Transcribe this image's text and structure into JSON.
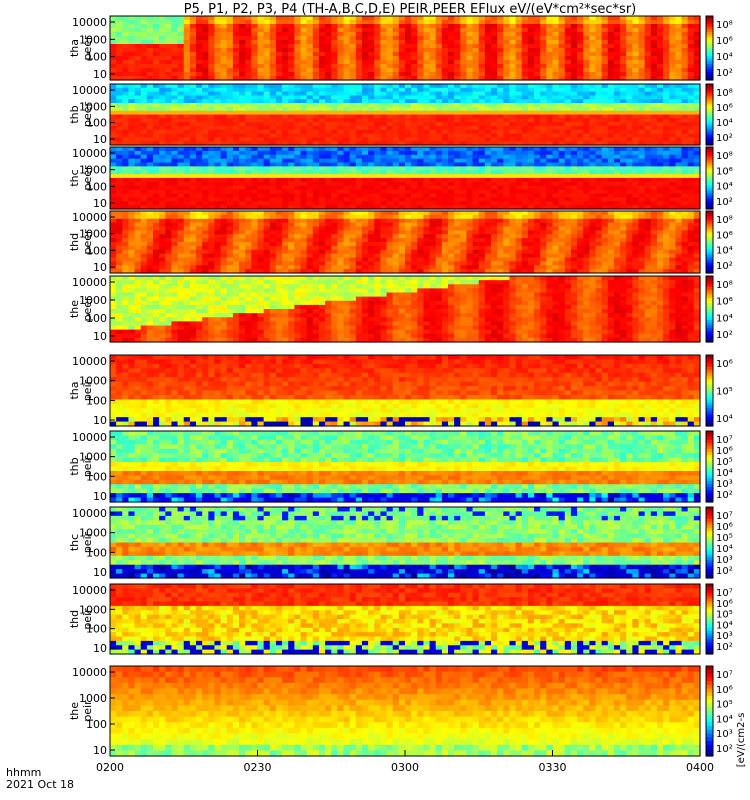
{
  "chart_data": {
    "type": "heatmap",
    "title": "P5, P1, P2, P3, P4 (TH-A,B,C,D,E) PEIR,PEER EFlux eV/(eV*cm²*sec*sr)",
    "x_axis": {
      "ticks": [
        "0200",
        "0230",
        "0300",
        "0330",
        "0400"
      ],
      "title_line1": "hhmm",
      "title_line2": "2021 Oct 18"
    },
    "colorbar_unit_label": "[eV/(cm2-s",
    "panels": [
      {
        "label1": "tha",
        "label2": "peer",
        "yticks": [
          "10",
          "100",
          "1000",
          "10000"
        ],
        "colorbar": [
          "10²",
          "10⁴",
          "10⁶",
          "10⁸"
        ],
        "pattern": "tha_peer"
      },
      {
        "label1": "thb",
        "label2": "peer",
        "yticks": [
          "10",
          "100",
          "1000",
          "10000"
        ],
        "colorbar": [
          "10²",
          "10⁴",
          "10⁶",
          "10⁸"
        ],
        "pattern": "thb_peer"
      },
      {
        "label1": "thc",
        "label2": "peer",
        "yticks": [
          "10",
          "100",
          "1000",
          "10000"
        ],
        "colorbar": [
          "10²",
          "10⁴",
          "10⁶",
          "10⁸"
        ],
        "pattern": "thc_peer"
      },
      {
        "label1": "thd",
        "label2": "peer",
        "yticks": [
          "10",
          "100",
          "1000",
          "10000"
        ],
        "colorbar": [
          "10²",
          "10⁴",
          "10⁶",
          "10⁸"
        ],
        "pattern": "thd_peer"
      },
      {
        "label1": "the",
        "label2": "peer",
        "yticks": [
          "10",
          "100",
          "1000",
          "10000"
        ],
        "colorbar": [
          "10²",
          "10⁴",
          "10⁶",
          "10⁸"
        ],
        "pattern": "the_peer"
      },
      {
        "label1": "tha",
        "label2": "peir",
        "yticks": [
          "10",
          "100",
          "1000",
          "10000"
        ],
        "colorbar": [
          "10⁴",
          "10⁵",
          "10⁶"
        ],
        "pattern": "tha_peir"
      },
      {
        "label1": "thb",
        "label2": "peir",
        "yticks": [
          "10",
          "100",
          "1000",
          "10000"
        ],
        "colorbar": [
          "10²",
          "10³",
          "10⁴",
          "10⁵",
          "10⁶",
          "10⁷"
        ],
        "pattern": "thb_peir"
      },
      {
        "label1": "thc",
        "label2": "peir",
        "yticks": [
          "10",
          "100",
          "1000",
          "10000"
        ],
        "colorbar": [
          "10²",
          "10³",
          "10⁴",
          "10⁵",
          "10⁶",
          "10⁷"
        ],
        "pattern": "thc_peir"
      },
      {
        "label1": "thd",
        "label2": "peir",
        "yticks": [
          "10",
          "100",
          "1000",
          "10000"
        ],
        "colorbar": [
          "10²",
          "10³",
          "10⁴",
          "10⁵",
          "10⁶",
          "10⁷"
        ],
        "pattern": "thd_peir"
      },
      {
        "label1": "the",
        "label2": "peir",
        "yticks": [
          "10",
          "100",
          "1000",
          "10000"
        ],
        "colorbar": [
          "10²",
          "10³",
          "10⁴",
          "10⁵",
          "10⁶",
          "10⁷"
        ],
        "pattern": "the_peir"
      }
    ]
  }
}
